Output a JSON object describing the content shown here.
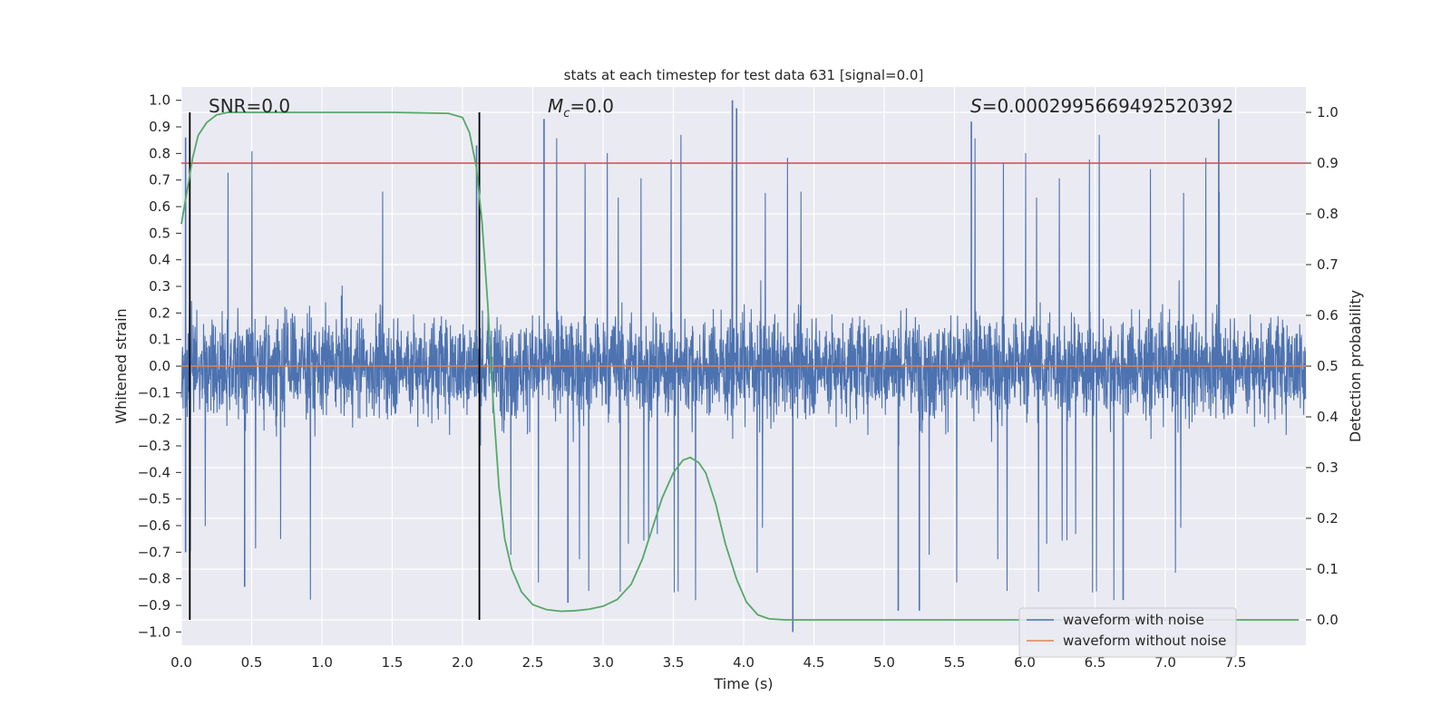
{
  "chart_data": {
    "type": "line",
    "title": "stats at each timestep for test data 631 [signal=0.0]",
    "xlabel": "Time (s)",
    "ylabel_left": "Whitened strain",
    "ylabel_right": "Detection probability",
    "xlim": [
      0.0,
      8.0
    ],
    "ylim_left": [
      -1.05,
      1.05
    ],
    "ylim_right": [
      -0.05,
      1.05
    ],
    "x_ticks": [
      "0.0",
      "0.5",
      "1.0",
      "1.5",
      "2.0",
      "2.5",
      "3.0",
      "3.5",
      "4.0",
      "4.5",
      "5.0",
      "5.5",
      "6.0",
      "6.5",
      "7.0",
      "7.5"
    ],
    "y_ticks_left": [
      "1.0",
      "0.9",
      "0.8",
      "0.7",
      "0.6",
      "0.5",
      "0.4",
      "0.3",
      "0.2",
      "0.1",
      "0.0",
      "−0.1",
      "−0.2",
      "−0.3",
      "−0.4",
      "−0.5",
      "−0.6",
      "−0.7",
      "−0.8",
      "−0.9",
      "−1.0"
    ],
    "y_ticks_right": [
      "1.0",
      "0.9",
      "0.8",
      "0.7",
      "0.6",
      "0.5",
      "0.4",
      "0.3",
      "0.2",
      "0.1",
      "0.0"
    ],
    "annotations": {
      "snr": "SNR=0.0",
      "mc_symbol": "M",
      "mc_sub": "c",
      "mc_value": "=0.0",
      "s_symbol": "S",
      "s_value": "=0.0002995669492520392"
    },
    "threshold_right": 0.9,
    "vertical_markers_x": [
      0.06,
      2.12
    ],
    "series": [
      {
        "name": "waveform with noise",
        "color": "#4c72b0",
        "axis": "left",
        "description_range": [
          -1.0,
          1.0
        ],
        "notable_peaks": [
          [
            0.03,
            0.86
          ],
          [
            2.1,
            0.83
          ],
          [
            2.58,
            0.93
          ],
          [
            3.92,
            1.0
          ],
          [
            3.95,
            0.97
          ],
          [
            5.62,
            0.92
          ],
          [
            7.38,
            0.93
          ]
        ],
        "notable_troughs": [
          [
            0.03,
            -0.7
          ],
          [
            0.45,
            -0.83
          ],
          [
            2.75,
            -0.89
          ],
          [
            4.35,
            -1.0
          ],
          [
            5.1,
            -0.92
          ],
          [
            5.25,
            -0.92
          ],
          [
            6.7,
            -0.88
          ]
        ]
      },
      {
        "name": "waveform without noise",
        "color": "#dd8452",
        "axis": "left",
        "x": [
          0.0,
          8.0
        ],
        "y": [
          0.0,
          0.0
        ]
      },
      {
        "name": "Detection probability",
        "color": "#55a868",
        "axis": "right",
        "x": [
          0.0,
          0.05,
          0.08,
          0.12,
          0.18,
          0.25,
          0.33,
          0.5,
          1.0,
          1.5,
          1.9,
          2.0,
          2.05,
          2.1,
          2.14,
          2.18,
          2.22,
          2.26,
          2.3,
          2.35,
          2.42,
          2.5,
          2.6,
          2.7,
          2.8,
          2.9,
          3.0,
          3.1,
          3.2,
          3.28,
          3.35,
          3.42,
          3.5,
          3.57,
          3.62,
          3.68,
          3.73,
          3.8,
          3.87,
          3.95,
          4.02,
          4.1,
          4.18,
          4.3,
          5.0,
          6.0,
          7.0,
          7.95
        ],
        "y": [
          0.78,
          0.86,
          0.91,
          0.955,
          0.98,
          0.995,
          1.0,
          1.0,
          1.0,
          1.0,
          0.998,
          0.99,
          0.96,
          0.89,
          0.78,
          0.62,
          0.42,
          0.26,
          0.16,
          0.1,
          0.055,
          0.03,
          0.02,
          0.017,
          0.018,
          0.021,
          0.027,
          0.04,
          0.07,
          0.12,
          0.18,
          0.24,
          0.29,
          0.315,
          0.32,
          0.31,
          0.29,
          0.23,
          0.15,
          0.08,
          0.035,
          0.01,
          0.002,
          0.0,
          0.0,
          0.0,
          0.0,
          0.0
        ]
      }
    ],
    "legend": {
      "position": "lower-right",
      "entries": [
        {
          "label": "waveform with noise",
          "color": "#4c72b0"
        },
        {
          "label": "waveform without noise",
          "color": "#dd8452"
        }
      ]
    },
    "colors": {
      "plot_bg": "#eaeaf2",
      "grid": "#ffffff",
      "threshold": "#c44e52",
      "marker": "#000000"
    }
  }
}
